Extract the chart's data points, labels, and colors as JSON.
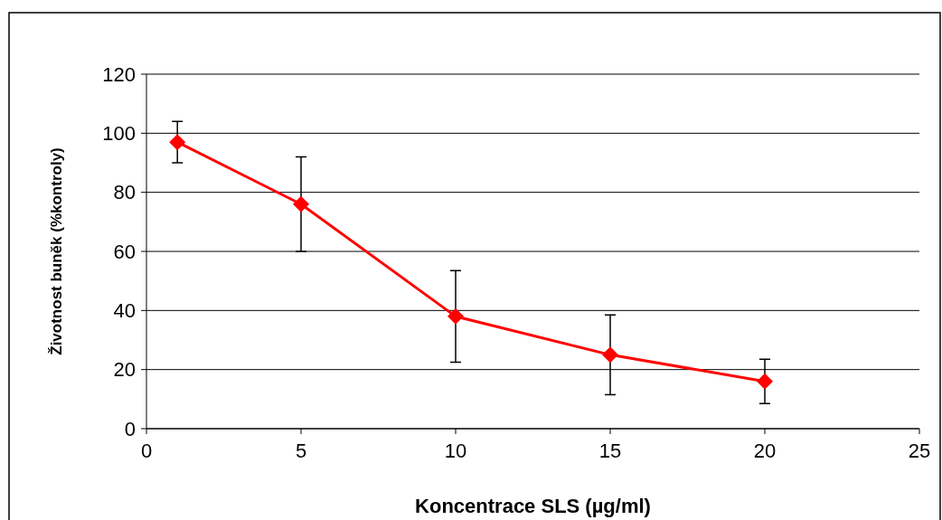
{
  "chart_data": {
    "type": "line",
    "xlabel": "Koncentrace SLS (µg/ml)",
    "ylabel": "Životnost buněk (%kontroly)",
    "x": [
      1,
      5,
      10,
      15,
      20
    ],
    "series": [
      {
        "color": "#ff0000",
        "values": [
          97,
          76,
          38,
          25,
          16
        ],
        "errors": [
          7,
          16,
          15.5,
          13.5,
          7.5
        ]
      }
    ],
    "xlim": [
      0,
      25
    ],
    "xticks": [
      0,
      5,
      10,
      15,
      20,
      25
    ],
    "ylim": [
      0,
      120
    ],
    "yticks": [
      0,
      20,
      40,
      60,
      80,
      100,
      120
    ],
    "grid": "y",
    "marker": "diamond",
    "line_style": "solid"
  }
}
